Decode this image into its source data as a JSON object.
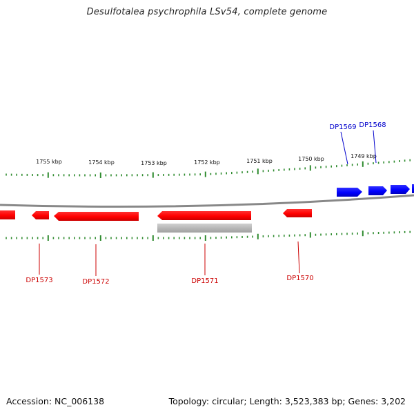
{
  "header": {
    "title": "Desulfotalea psychrophila LSv54, complete genome"
  },
  "footer": {
    "accession": "Accession: NC_006138",
    "summary": "Topology: circular; Length: 3,523,383 bp; Genes: 3,202"
  },
  "ruler": {
    "labels": [
      "1755 kbp",
      "1754 kbp",
      "1753 kbp",
      "1752 kbp",
      "1751 kbp",
      "1750 kbp",
      "1749 kbp"
    ]
  },
  "genes": {
    "reverse": [
      {
        "id": "DP1573",
        "color": "#ff0000"
      },
      {
        "id": "DP1572",
        "color": "#ff0000"
      },
      {
        "id": "DP1571",
        "color": "#ff0000"
      },
      {
        "id": "DP1570",
        "color": "#ff0000"
      }
    ],
    "forward": [
      {
        "id": "DP1569",
        "color": "#0000ff"
      },
      {
        "id": "DP1568",
        "color": "#0000ff"
      }
    ]
  },
  "colors": {
    "backbone": "#888888",
    "tick": "#2e8b2e",
    "reverse_gene": "#ff0000",
    "forward_gene": "#0000ff",
    "gray_feature": "#b0b0b0"
  }
}
